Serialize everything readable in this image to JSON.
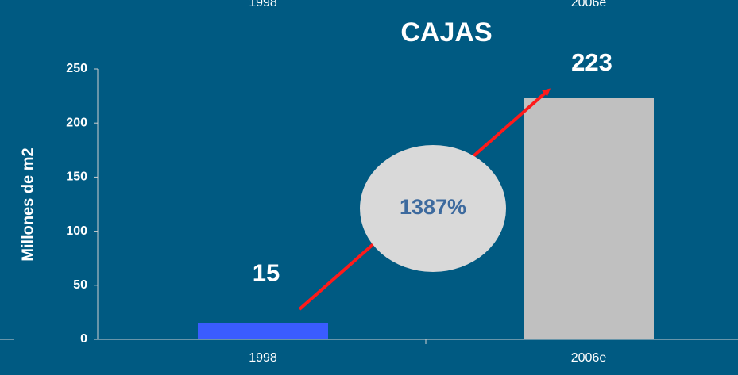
{
  "chart_data": {
    "type": "bar",
    "title": "CAJAS",
    "y_label": "Millones de m2",
    "categories": [
      "1998",
      "2006e"
    ],
    "values": [
      15,
      223
    ],
    "colors": [
      "#3a5cff",
      "#c0c0c0"
    ],
    "ylim": [
      0,
      250
    ],
    "yticks": [
      0,
      50,
      100,
      150,
      200,
      250
    ],
    "annotation": "1387%",
    "background": "#005a82"
  }
}
